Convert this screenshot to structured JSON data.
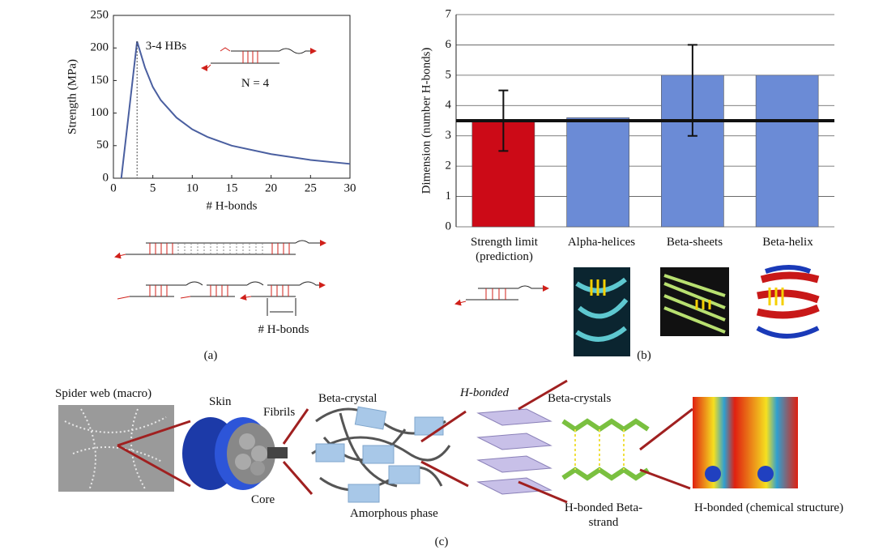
{
  "chart_data": [
    {
      "type": "line",
      "x_label": "# H-bonds",
      "y_label": "Strength (MPa)",
      "x": [
        1,
        3,
        4,
        5,
        6,
        8,
        10,
        12,
        15,
        20,
        25,
        30
      ],
      "series": [
        {
          "color": "#4a5fa0",
          "values": [
            0,
            210,
            170,
            140,
            120,
            93,
            75,
            63,
            50,
            37,
            28,
            22
          ]
        }
      ],
      "xlim": [
        0,
        30
      ],
      "xticks": [
        0,
        5,
        10,
        15,
        20,
        25,
        30
      ],
      "ylim": [
        0,
        250
      ],
      "yticks": [
        0,
        50,
        100,
        150,
        200,
        250
      ],
      "annotations": [
        "3-4 HBs",
        "N = 4"
      ]
    },
    {
      "type": "bar",
      "y_label": "Dimension (number H-bonds)",
      "categories": [
        "Strength limit (prediction)",
        "Alpha-helices",
        "Beta-sheets",
        "Beta-helix"
      ],
      "values": [
        3.5,
        3.6,
        5,
        5
      ],
      "colors": [
        "#cc0a17",
        "#6b8bd6",
        "#6b8bd6",
        "#6b8bd6"
      ],
      "error_minus": [
        1,
        null,
        2,
        null
      ],
      "error_plus": [
        1,
        null,
        1,
        null
      ],
      "hline": 3.5,
      "ylim": [
        0,
        7
      ],
      "yticks": [
        0,
        1,
        2,
        3,
        4,
        5,
        6,
        7
      ],
      "grid": true
    }
  ],
  "panel_labels": [
    "(a)",
    "(b)",
    "(c)"
  ],
  "diagram_a": {
    "label": "# H-bonds"
  },
  "diagram_c": {
    "labels": [
      "Spider web (macro)",
      "Skin",
      "Fibrils",
      "Core",
      "Beta-crystal",
      "Amorphous phase",
      "H-bonded",
      "Beta-crystals",
      "H-bonded Beta-strand",
      "H-bonded (chemical structure)"
    ]
  }
}
